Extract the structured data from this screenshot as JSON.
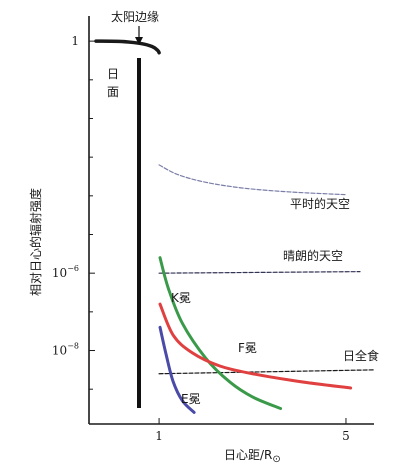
{
  "chart_data": {
    "type": "line",
    "title": "",
    "ylabel": "相对日心的辐射强度",
    "xlabel": "日心距/R",
    "xlabel_subscript": "⊙",
    "x_ticks": [
      "1",
      "5"
    ],
    "y_ticks": [
      {
        "base": "1",
        "exp": ""
      },
      {
        "base": "10",
        "exp": "−6"
      },
      {
        "base": "10",
        "exp": "−8"
      }
    ],
    "annotations": {
      "solar_limb": "太阳边缘",
      "disk_label": [
        "日",
        "面"
      ]
    },
    "series": [
      {
        "name": "平时的天空",
        "style": "dashed",
        "color": "#7b7fa8",
        "points": [
          [
            1.0,
            -3.2
          ],
          [
            1.4,
            -3.45
          ],
          [
            2.0,
            -3.65
          ],
          [
            2.8,
            -3.8
          ],
          [
            3.8,
            -3.9
          ],
          [
            5.0,
            -3.97
          ]
        ]
      },
      {
        "name": "晴朗的天空",
        "style": "dashed",
        "color": "#333355",
        "points": [
          [
            1.0,
            -6.0
          ],
          [
            5.3,
            -5.96
          ]
        ]
      },
      {
        "name": "日全食",
        "style": "dashed",
        "color": "#1a1a1a",
        "points": [
          [
            1.0,
            -8.6
          ],
          [
            5.6,
            -8.5
          ]
        ]
      },
      {
        "name": "K冕",
        "style": "solid",
        "color": "#3a9a4a",
        "points": [
          [
            1.02,
            -5.6
          ],
          [
            1.2,
            -6.4
          ],
          [
            1.5,
            -7.3
          ],
          [
            2.0,
            -8.2
          ],
          [
            2.5,
            -8.8
          ],
          [
            3.0,
            -9.2
          ],
          [
            3.6,
            -9.5
          ]
        ]
      },
      {
        "name": "F冕",
        "style": "solid",
        "color": "#e04040",
        "points": [
          [
            1.02,
            -6.8
          ],
          [
            1.3,
            -7.6
          ],
          [
            1.7,
            -8.05
          ],
          [
            2.3,
            -8.4
          ],
          [
            3.0,
            -8.6
          ],
          [
            4.0,
            -8.8
          ],
          [
            5.1,
            -8.97
          ]
        ]
      },
      {
        "name": "E冕",
        "style": "solid",
        "color": "#4a4aa8",
        "points": [
          [
            1.02,
            -7.4
          ],
          [
            1.15,
            -8.1
          ],
          [
            1.3,
            -8.8
          ],
          [
            1.5,
            -9.3
          ],
          [
            1.75,
            -9.6
          ]
        ]
      },
      {
        "name": "",
        "style": "solid",
        "color": "#1a1a1a",
        "points": [
          [
            -0.35,
            0.0
          ],
          [
            0.2,
            -0.01
          ],
          [
            0.6,
            -0.06
          ],
          [
            0.85,
            -0.14
          ],
          [
            0.97,
            -0.24
          ],
          [
            1.0,
            -0.3
          ]
        ]
      }
    ],
    "series_label_text": [
      "平时的天空",
      "晴朗的天空",
      "日全食",
      "K冕",
      "F冕",
      "E冕"
    ],
    "xlim": [
      -0.5,
      5.6
    ],
    "ylim": [
      -9.9,
      0.65
    ]
  }
}
